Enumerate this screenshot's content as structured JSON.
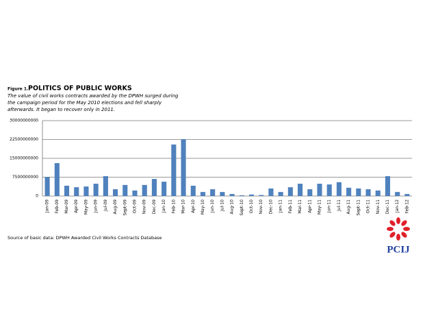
{
  "chart_data": {
    "type": "bar",
    "figure_label": "Figure 1.",
    "title": "POLITICS OF PUBLIC WORKS",
    "subtitle": [
      "The value of civil works contracts awarded by the DPWH surged during",
      "the campaign period for the May 2010 elections and fell sharply",
      "afterwards. It began to recover only in 2011."
    ],
    "source": "Source of basic data: DPWH Awarded Civil Works Contracts Database",
    "logo_text": "PCIJ",
    "categories": [
      "Jan-09",
      "Feb-09",
      "Mar-09",
      "Apr-09",
      "May-09",
      "Jun-09",
      "Jul-09",
      "Aug-09",
      "Sept-09",
      "Oct-09",
      "Nov-09",
      "Dec-09",
      "Jan-10",
      "Feb-10",
      "Mar-10",
      "Apr-10",
      "May-10",
      "Jun-10",
      "Jul-10",
      "Aug-10",
      "Sept-10",
      "Oct-10",
      "Nov-10",
      "Dec-10",
      "Jan-11",
      "Feb-11",
      "Mar-11",
      "Apr-11",
      "May-11",
      "Jun-11",
      "Jul-11",
      "Aug-11",
      "Sept-11",
      "Oct-11",
      "Nov-11",
      "Dec-11",
      "Jan-12",
      "Feb-12"
    ],
    "values": [
      7600000000,
      13100000000,
      4100000000,
      3500000000,
      3800000000,
      4900000000,
      7900000000,
      2700000000,
      4400000000,
      2200000000,
      4400000000,
      6800000000,
      5700000000,
      20500000000,
      22600000000,
      4100000000,
      1600000000,
      2700000000,
      1600000000,
      800000000,
      300000000,
      600000000,
      400000000,
      3000000000,
      1600000000,
      3500000000,
      4900000000,
      2700000000,
      4900000000,
      4600000000,
      5500000000,
      3300000000,
      3000000000,
      2700000000,
      2200000000,
      7900000000,
      1600000000,
      800000000
    ],
    "color": "#4f81bd",
    "ylim": [
      0,
      30000000000
    ],
    "yticks": [
      0,
      7500000000,
      15000000000,
      22500000000,
      30000000000
    ],
    "grid": true
  }
}
